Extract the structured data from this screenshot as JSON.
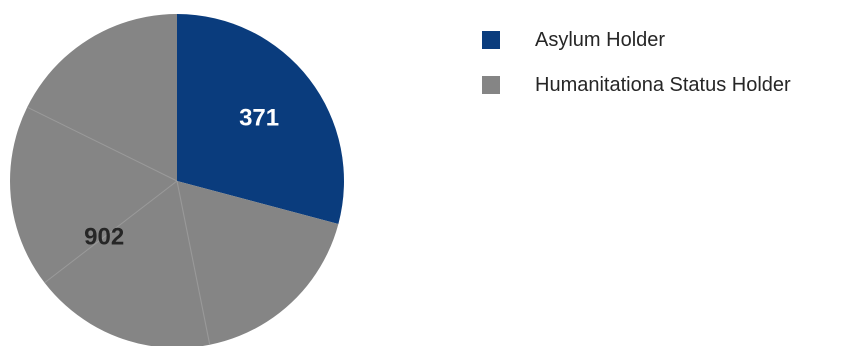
{
  "chart_data": {
    "type": "pie",
    "categories": [
      "Asylum Holder",
      "Humanitationa Status Holder"
    ],
    "values": [
      371,
      902
    ],
    "data_labels": [
      "371",
      "902"
    ],
    "colors": [
      "#0a3c7d",
      "#858585"
    ],
    "title": "",
    "legend_position": "right",
    "start_angle_deg": 0,
    "direction": "clockwise",
    "gray_area_subdivisions": 4
  }
}
